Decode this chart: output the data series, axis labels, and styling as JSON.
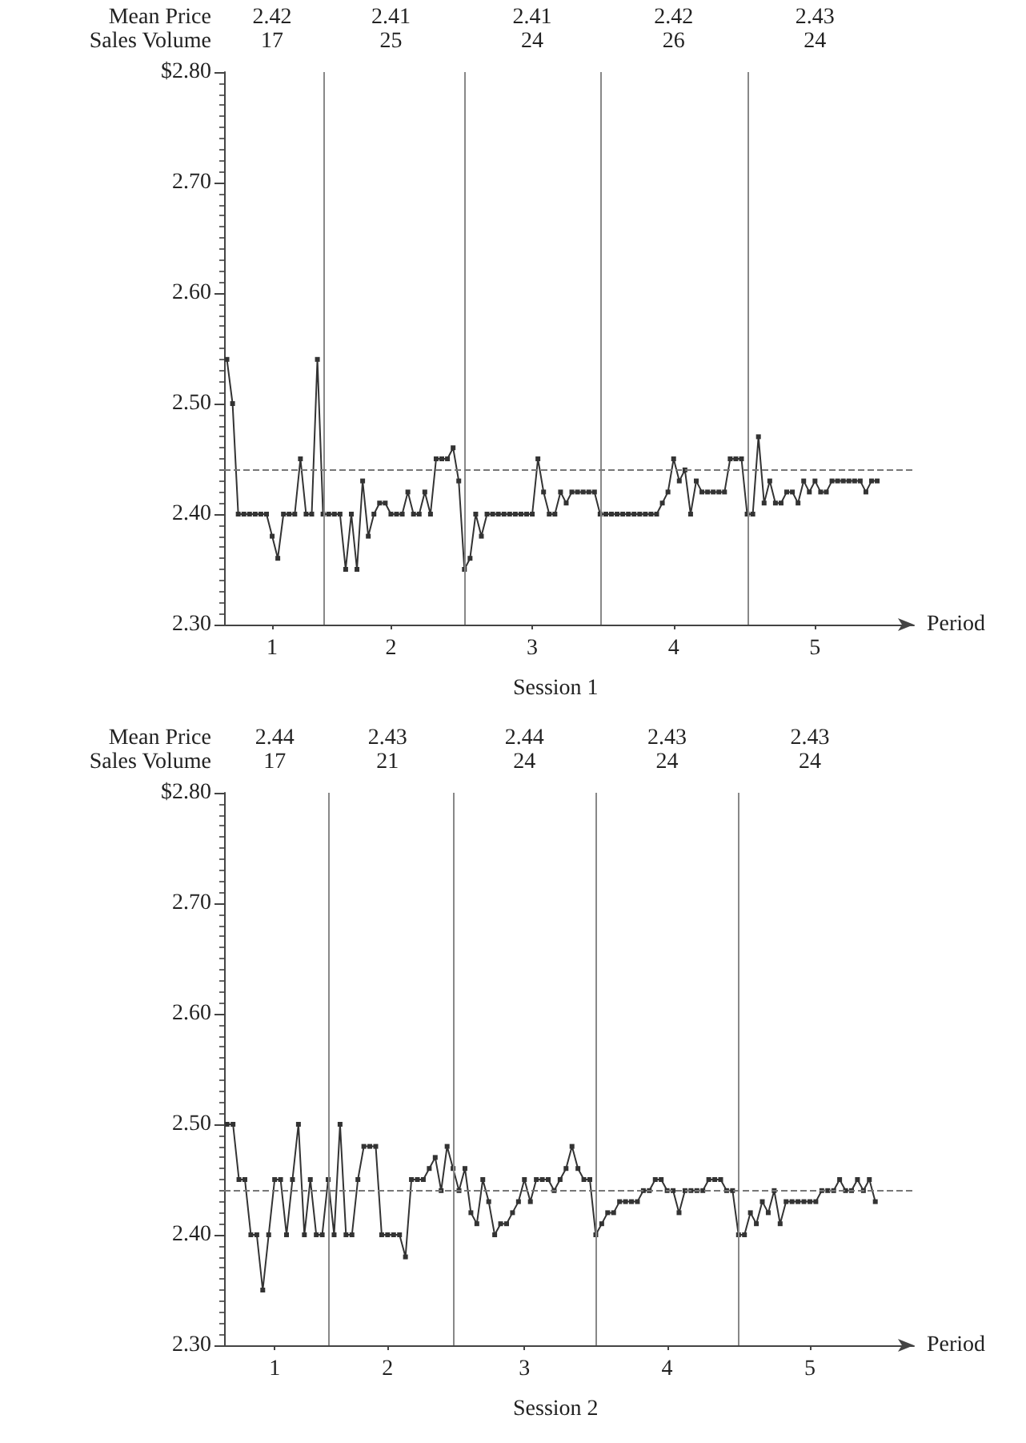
{
  "chart_data": [
    {
      "type": "line",
      "title": "Session 1",
      "xlabel": "Period",
      "annotations": [
        "Mean Price",
        "Sales Volume",
        "2.42",
        "17",
        "2.41",
        "25",
        "2.41",
        "24",
        "2.42",
        "26",
        "2.43",
        "24"
      ],
      "categories": [
        null,
        null,
        null,
        null,
        null,
        null,
        null,
        null,
        "1",
        null,
        null,
        null,
        null,
        null,
        null,
        null,
        null,
        null,
        null,
        null,
        null,
        null,
        null,
        null,
        null,
        null,
        null,
        null,
        null,
        "2",
        null,
        null,
        null,
        null,
        null,
        null,
        null,
        null,
        null,
        null,
        null,
        null,
        null,
        null,
        null,
        null,
        null,
        null,
        null,
        null,
        null,
        null,
        null,
        null,
        "3",
        null,
        null,
        null,
        null,
        null,
        null,
        null,
        null,
        null,
        null,
        null,
        null,
        null,
        null,
        null,
        null,
        null,
        null,
        null,
        null,
        null,
        null,
        null,
        null,
        "4",
        null,
        null,
        null,
        null,
        null,
        null,
        null,
        null,
        null,
        null,
        null,
        null,
        null,
        null,
        null,
        null,
        null,
        null,
        null,
        null,
        null,
        null,
        null,
        null,
        "5",
        null,
        null,
        null,
        null,
        null,
        null,
        null,
        null,
        null,
        null,
        null,
        null,
        null,
        null,
        null,
        null,
        null
      ],
      "ylim": [
        2.3,
        2.8
      ],
      "yticks": [
        {
          "value": 2.3,
          "label": "2.30"
        },
        {
          "value": 2.4,
          "label": "2.40"
        },
        {
          "value": 2.5,
          "label": "2.50"
        },
        {
          "value": 2.6,
          "label": "2.60"
        },
        {
          "value": 2.7,
          "label": "2.70"
        },
        {
          "value": 2.8,
          "label": "$2.80"
        }
      ],
      "marker": "square",
      "line_style": "solid",
      "ref_lines": [
        {
          "axis": "y",
          "value": 2.44,
          "label": null,
          "color": "#777777",
          "line_style": "dashed"
        }
      ],
      "series": [
        {
          "color": "#333333",
          "values": [
            2.54,
            2.5,
            2.4,
            2.4,
            2.4,
            2.4,
            2.4,
            2.4,
            2.38,
            2.36,
            2.4,
            2.4,
            2.4,
            2.45,
            2.4,
            2.4,
            2.54,
            2.4,
            2.4,
            2.4,
            2.4,
            2.35,
            2.4,
            2.35,
            2.43,
            2.38,
            2.4,
            2.41,
            2.41,
            2.4,
            2.4,
            2.4,
            2.42,
            2.4,
            2.4,
            2.42,
            2.4,
            2.45,
            2.45,
            2.45,
            2.46,
            2.43,
            2.35,
            2.36,
            2.4,
            2.38,
            2.4,
            2.4,
            2.4,
            2.4,
            2.4,
            2.4,
            2.4,
            2.4,
            2.4,
            2.45,
            2.42,
            2.4,
            2.4,
            2.42,
            2.41,
            2.42,
            2.42,
            2.42,
            2.42,
            2.42,
            2.4,
            2.4,
            2.4,
            2.4,
            2.4,
            2.4,
            2.4,
            2.4,
            2.4,
            2.4,
            2.4,
            2.41,
            2.42,
            2.45,
            2.43,
            2.44,
            2.4,
            2.43,
            2.42,
            2.42,
            2.42,
            2.42,
            2.42,
            2.45,
            2.45,
            2.45,
            2.4,
            2.4,
            2.47,
            2.41,
            2.43,
            2.41,
            2.41,
            2.42,
            2.42,
            2.41,
            2.43,
            2.42,
            2.43,
            2.42,
            2.42,
            2.43,
            2.43,
            2.43,
            2.43,
            2.43,
            2.43,
            2.42,
            2.43,
            2.43,
            null,
            null,
            null,
            null,
            null,
            null
          ]
        }
      ]
    },
    {
      "type": "line",
      "title": "Session 2",
      "xlabel": "Period",
      "annotations": [
        "Mean Price",
        "Sales Volume",
        "2.44",
        "17",
        "2.43",
        "21",
        "2.44",
        "24",
        "2.43",
        "24",
        "2.43",
        "24"
      ],
      "categories": [
        null,
        null,
        null,
        null,
        null,
        null,
        null,
        null,
        "1",
        null,
        null,
        null,
        null,
        null,
        null,
        null,
        null,
        null,
        null,
        null,
        null,
        null,
        null,
        null,
        null,
        null,
        null,
        "2",
        null,
        null,
        null,
        null,
        null,
        null,
        null,
        null,
        null,
        null,
        null,
        null,
        null,
        null,
        null,
        null,
        null,
        null,
        null,
        null,
        null,
        null,
        "3",
        null,
        null,
        null,
        null,
        null,
        null,
        null,
        null,
        null,
        null,
        null,
        null,
        null,
        null,
        null,
        null,
        null,
        null,
        null,
        null,
        null,
        null,
        null,
        "4",
        null,
        null,
        null,
        null,
        null,
        null,
        null,
        null,
        null,
        null,
        null,
        null,
        null,
        null,
        null,
        null,
        null,
        null,
        null,
        null,
        null,
        null,
        null,
        "5",
        null,
        null,
        null,
        null,
        null,
        null,
        null,
        null,
        null,
        null,
        null,
        null,
        null,
        null,
        null,
        null,
        null
      ],
      "ylim": [
        2.3,
        2.8
      ],
      "yticks": [
        {
          "value": 2.3,
          "label": "2.30"
        },
        {
          "value": 2.4,
          "label": "2.40"
        },
        {
          "value": 2.5,
          "label": "2.50"
        },
        {
          "value": 2.6,
          "label": "2.60"
        },
        {
          "value": 2.7,
          "label": "2.70"
        },
        {
          "value": 2.8,
          "label": "$2.80"
        }
      ],
      "marker": "square",
      "line_style": "solid",
      "ref_lines": [
        {
          "axis": "y",
          "value": 2.44,
          "label": null,
          "color": "#777777",
          "line_style": "dashed"
        }
      ],
      "series": [
        {
          "color": "#333333",
          "values": [
            2.5,
            2.5,
            2.45,
            2.45,
            2.4,
            2.4,
            2.35,
            2.4,
            2.45,
            2.45,
            2.4,
            2.45,
            2.5,
            2.4,
            2.45,
            2.4,
            2.4,
            2.45,
            2.4,
            2.5,
            2.4,
            2.4,
            2.45,
            2.48,
            2.48,
            2.48,
            2.4,
            2.4,
            2.4,
            2.4,
            2.38,
            2.45,
            2.45,
            2.45,
            2.46,
            2.47,
            2.44,
            2.48,
            2.46,
            2.44,
            2.46,
            2.42,
            2.41,
            2.45,
            2.43,
            2.4,
            2.41,
            2.41,
            2.42,
            2.43,
            2.45,
            2.43,
            2.45,
            2.45,
            2.45,
            2.44,
            2.45,
            2.46,
            2.48,
            2.46,
            2.45,
            2.45,
            2.4,
            2.41,
            2.42,
            2.42,
            2.43,
            2.43,
            2.43,
            2.43,
            2.44,
            2.44,
            2.45,
            2.45,
            2.44,
            2.44,
            2.42,
            2.44,
            2.44,
            2.44,
            2.44,
            2.45,
            2.45,
            2.45,
            2.44,
            2.44,
            2.4,
            2.4,
            2.42,
            2.41,
            2.43,
            2.42,
            2.44,
            2.41,
            2.43,
            2.43,
            2.43,
            2.43,
            2.43,
            2.43,
            2.44,
            2.44,
            2.44,
            2.45,
            2.44,
            2.44,
            2.45,
            2.44,
            2.45,
            2.43,
            null,
            null,
            null,
            null,
            null,
            null
          ]
        }
      ]
    }
  ]
}
